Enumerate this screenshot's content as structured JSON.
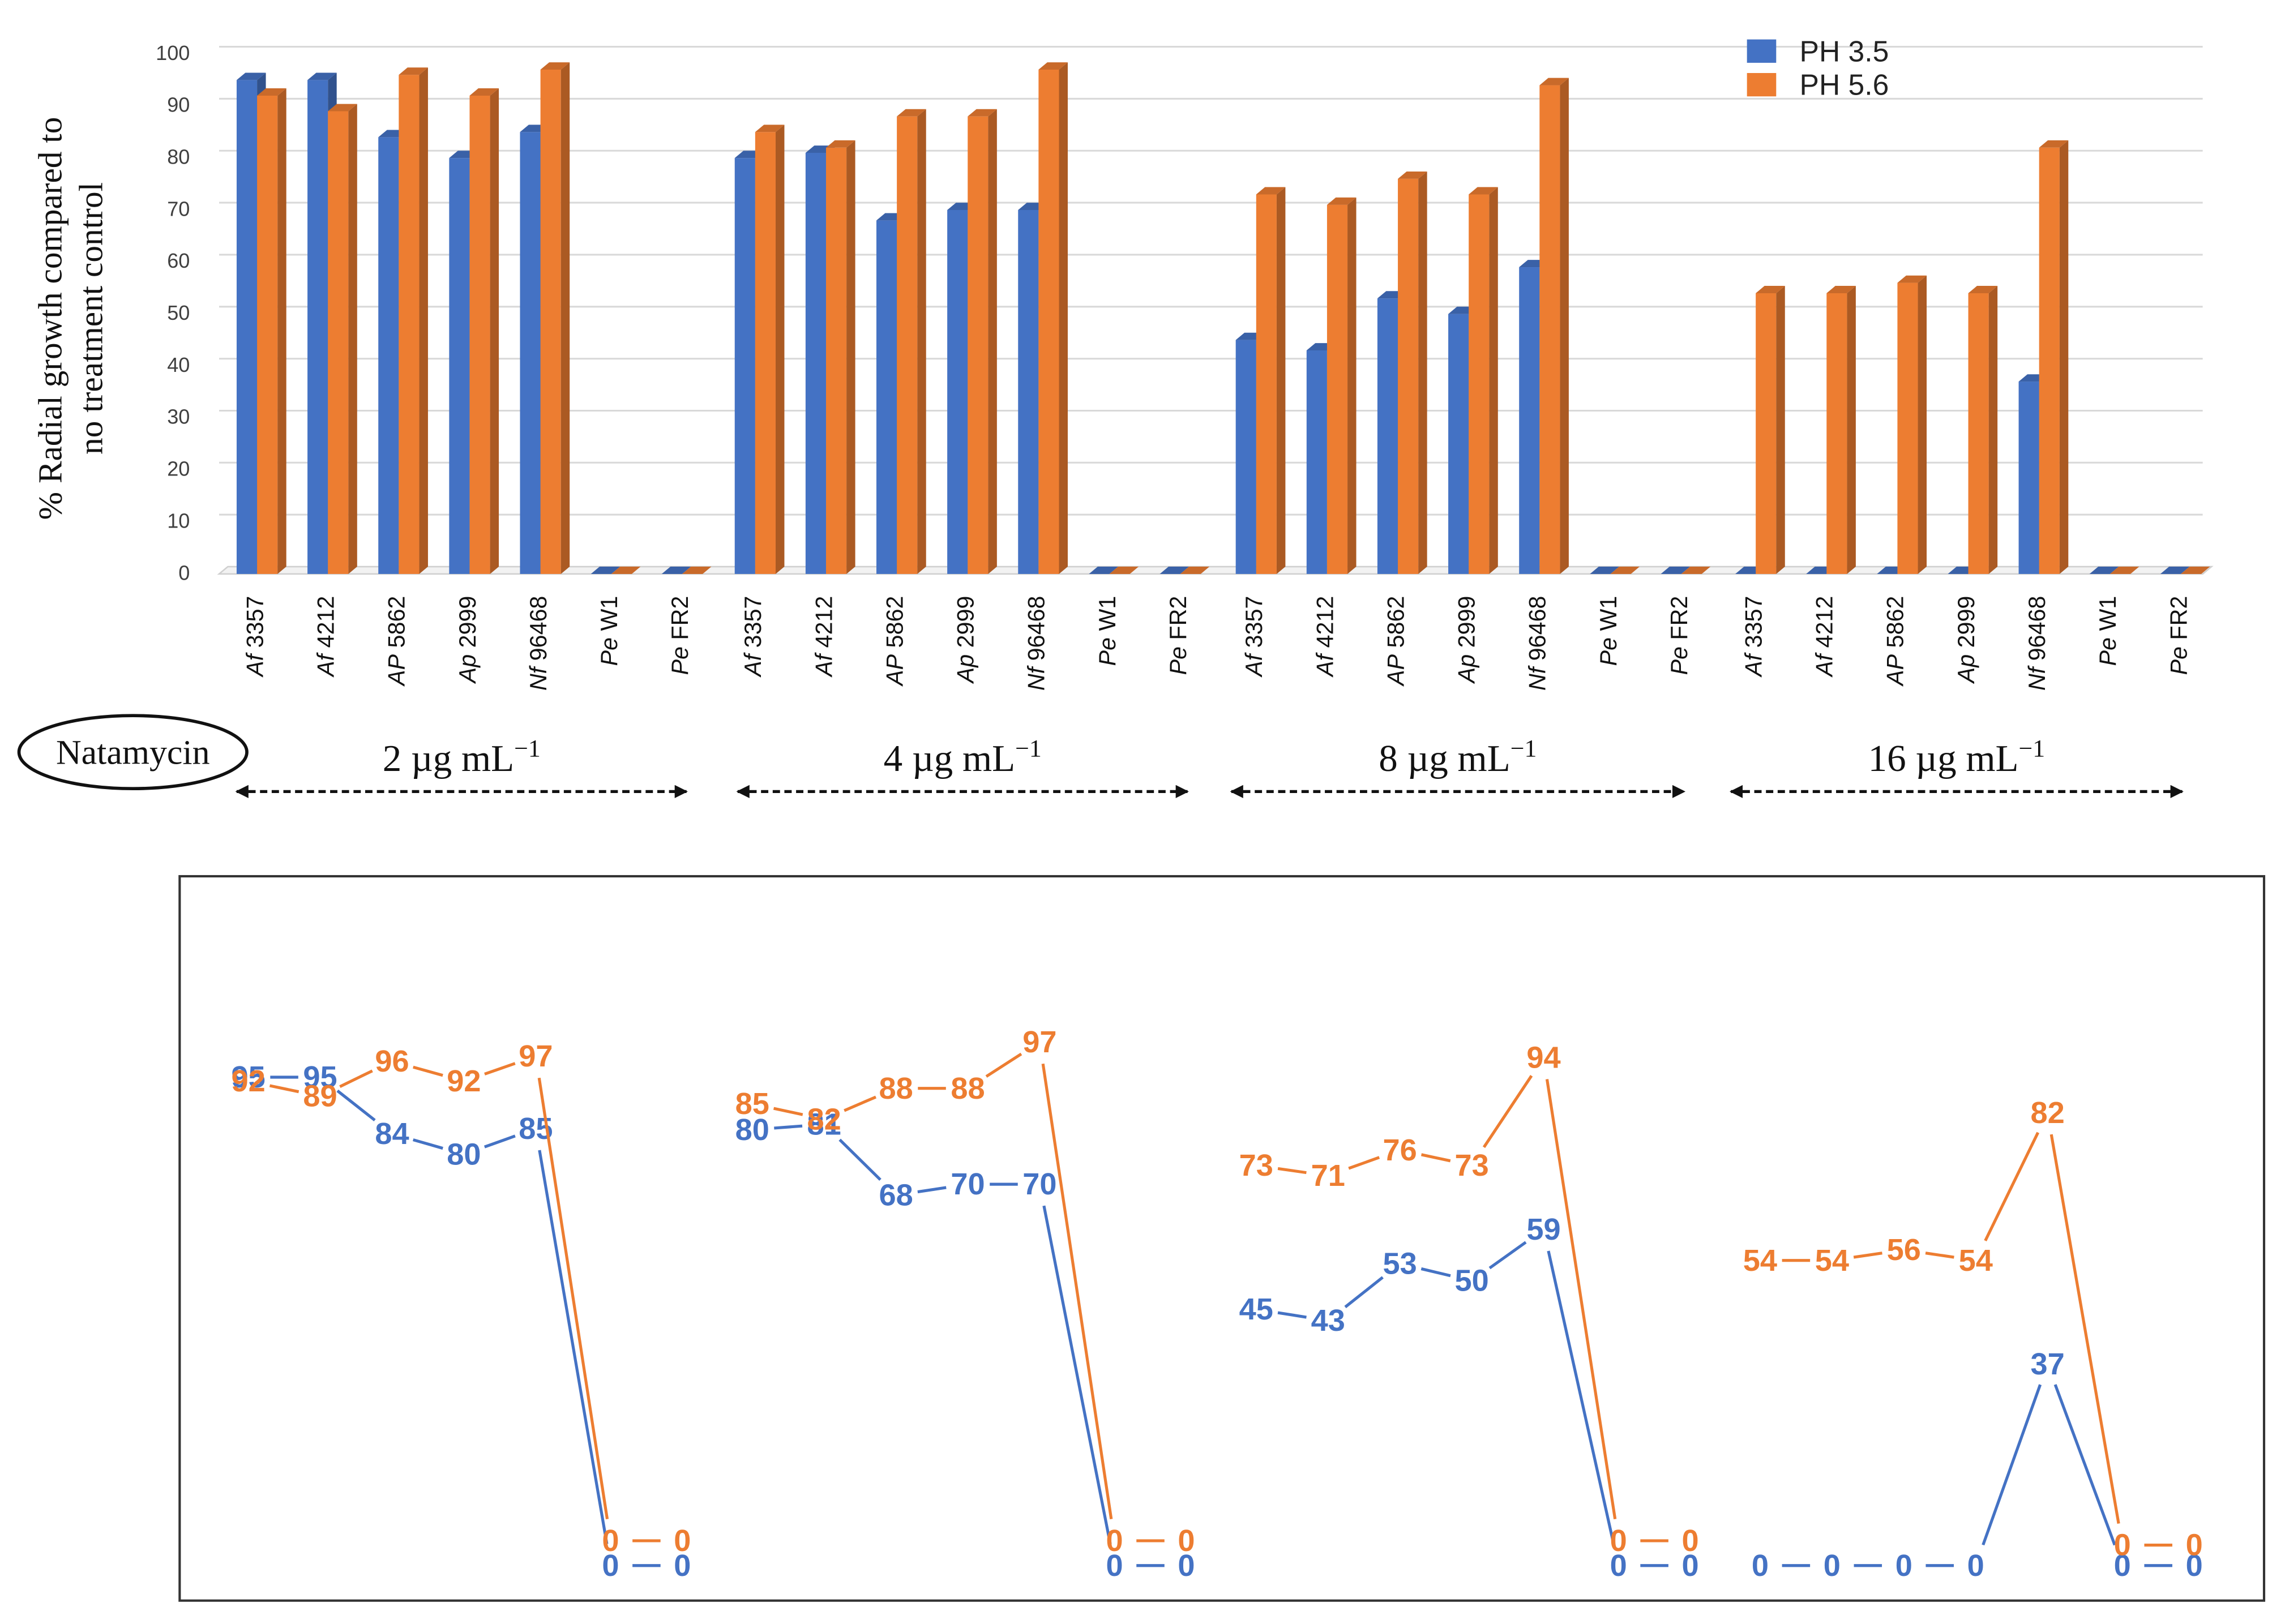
{
  "chart_data": [
    {
      "type": "bar",
      "title": "",
      "xlabel": "",
      "ylabel": "% Radial growth compared to no treatment control",
      "ylabel_lines": [
        "% Radial growth compared to",
        "no treatment control"
      ],
      "ylim": [
        0,
        100
      ],
      "yticks": [
        0,
        10,
        20,
        30,
        40,
        50,
        60,
        70,
        80,
        90,
        100
      ],
      "grid": true,
      "legend_position": "top-right",
      "drug": "Natamycin",
      "groups": [
        {
          "label": "2 µg mL⁻¹",
          "text": "2 µg mL",
          "sup": "−1"
        },
        {
          "label": "4 µg mL⁻¹",
          "text": "4 µg mL",
          "sup": "−1"
        },
        {
          "label": "8 µg mL⁻¹",
          "text": "8 µg mL",
          "sup": "−1"
        },
        {
          "label": "16 µg mL⁻¹",
          "text": "16 µg mL",
          "sup": "−1"
        }
      ],
      "strains": [
        {
          "label": "Af 3357",
          "italic": "Af",
          "rest": " 3357"
        },
        {
          "label": "Af 4212",
          "italic": "Af",
          "rest": " 4212"
        },
        {
          "label": "AP 5862",
          "italic": "AP",
          "rest": " 5862"
        },
        {
          "label": "Ap 2999",
          "italic": "Ap",
          "rest": " 2999"
        },
        {
          "label": "Nf 96468",
          "italic": "Nf",
          "rest": " 96468"
        },
        {
          "label": "Pe W1",
          "italic": "Pe",
          "rest": " W1"
        },
        {
          "label": "Pe FR2",
          "italic": "Pe",
          "rest": " FR2"
        }
      ],
      "series": [
        {
          "name": "PH 3.5",
          "color": "#4472c4",
          "values": [
            [
              95,
              95,
              84,
              80,
              85,
              0,
              0
            ],
            [
              80,
              81,
              68,
              70,
              70,
              0,
              0
            ],
            [
              45,
              43,
              53,
              50,
              59,
              0,
              0
            ],
            [
              0,
              0,
              0,
              0,
              37,
              0,
              0
            ]
          ]
        },
        {
          "name": "PH 5.6",
          "color": "#ed7d31",
          "values": [
            [
              92,
              89,
              96,
              92,
              97,
              0,
              0
            ],
            [
              85,
              82,
              88,
              88,
              97,
              0,
              0
            ],
            [
              73,
              71,
              76,
              73,
              94,
              0,
              0
            ],
            [
              54,
              54,
              56,
              54,
              82,
              0,
              0
            ]
          ]
        }
      ]
    },
    {
      "type": "line",
      "title": "",
      "note": "Data-labelled line view of the same values, one line per pH within each concentration group",
      "ylim": [
        0,
        100
      ],
      "grid": false,
      "series_ref": [
        "PH 3.5",
        "PH 5.6"
      ]
    }
  ]
}
